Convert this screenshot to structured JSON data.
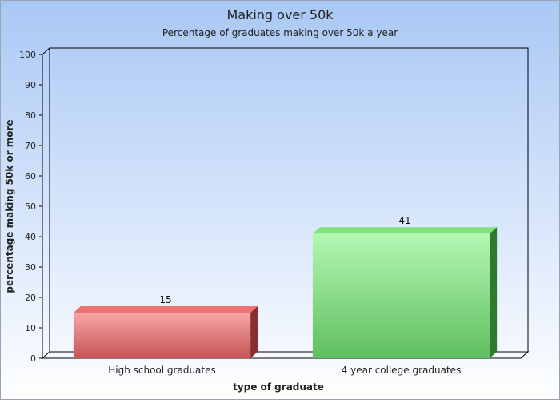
{
  "chart_data": {
    "type": "bar",
    "title": "Making over 50k",
    "subtitle": "Percentage of graduates making over 50k a year",
    "xlabel": "type of graduate",
    "ylabel": "percentage making 50k or more",
    "categories": [
      "High school graduates",
      "4 year college graduates"
    ],
    "values": [
      15,
      41
    ],
    "data_labels": [
      "15",
      "41"
    ],
    "ylim": [
      0,
      100
    ],
    "yticks": [
      "0",
      "10",
      "20",
      "30",
      "40",
      "50",
      "60",
      "70",
      "80",
      "90",
      "100"
    ],
    "bar_colors": [
      "#e06666",
      "#6fcf6f"
    ],
    "background_colors": [
      "#a9c8f5",
      "#ffffff"
    ],
    "three_d": true,
    "grid": false
  }
}
